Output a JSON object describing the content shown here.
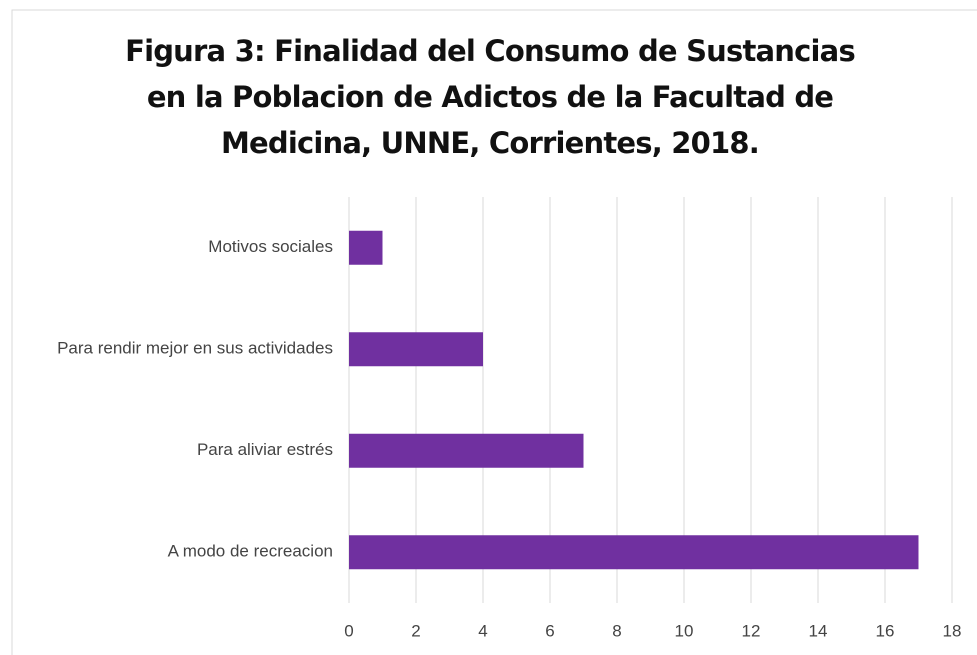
{
  "chart_data": {
    "type": "bar",
    "orientation": "horizontal",
    "title": "Figura 3: Finalidad del Consumo de Sustancias en la Poblacion de Adictos de la Facultad de Medicina, UNNE, Corrientes, 2018.",
    "categories": [
      "Motivos sociales",
      "Para rendir mejor en sus actividades",
      "Para aliviar estrés",
      "A modo de recreacion"
    ],
    "values": [
      1,
      4,
      7,
      17
    ],
    "color": "#7030a0",
    "xlim": [
      0,
      18
    ],
    "xticks": [
      0,
      2,
      4,
      6,
      8,
      10,
      12,
      14,
      16,
      18
    ],
    "grid": true
  }
}
